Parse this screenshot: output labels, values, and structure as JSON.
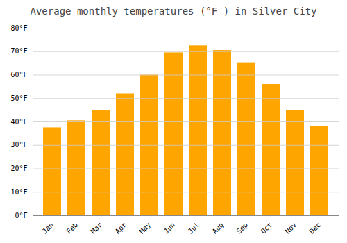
{
  "chart_data": {
    "type": "bar",
    "title": "Average monthly temperatures (°F ) in Silver City",
    "categories": [
      "Jan",
      "Feb",
      "Mar",
      "Apr",
      "May",
      "Jun",
      "Jul",
      "Aug",
      "Sep",
      "Oct",
      "Nov",
      "Dec"
    ],
    "values": [
      37.5,
      40.5,
      45.0,
      52.0,
      60.0,
      69.5,
      72.5,
      70.5,
      65.0,
      56.0,
      45.0,
      38.0
    ],
    "color": "#FFA500",
    "ylim": [
      0,
      80
    ],
    "yticks": [
      {
        "value": 0,
        "label": "0°F"
      },
      {
        "value": 10,
        "label": "10°F"
      },
      {
        "value": 20,
        "label": "20°F"
      },
      {
        "value": 30,
        "label": "30°F"
      },
      {
        "value": 40,
        "label": "40°F"
      },
      {
        "value": 50,
        "label": "50°F"
      },
      {
        "value": 60,
        "label": "60°F"
      },
      {
        "value": 70,
        "label": "70°F"
      },
      {
        "value": 80,
        "label": "80°F"
      }
    ],
    "grid": true
  }
}
